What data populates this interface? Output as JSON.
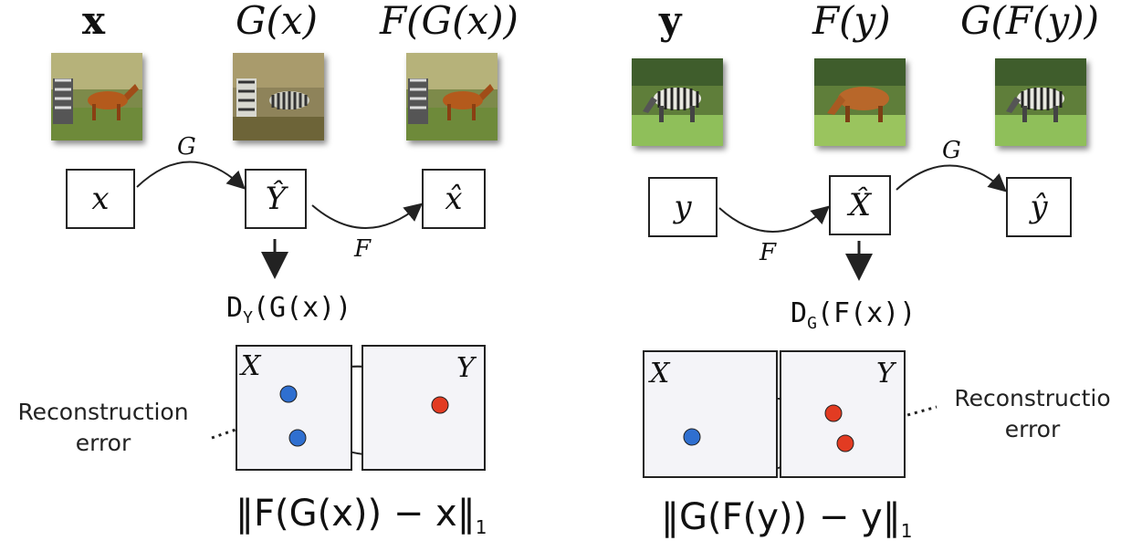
{
  "left": {
    "headers": [
      "x",
      "G(x)",
      "F(G(x))"
    ],
    "nodes": [
      "x",
      "Ŷ",
      "x̂"
    ],
    "edge_labels": [
      "G",
      "F"
    ],
    "discriminator": "D_Y(G(x))",
    "disc_main": "D",
    "disc_sub": "Y",
    "disc_arg": "(G(x))",
    "panel_labels": [
      "X",
      "Y"
    ],
    "reconstruction": [
      "Reconstruction",
      "error"
    ],
    "loss_main": "‖F(G(x)) − x‖",
    "loss_sub": "1"
  },
  "right": {
    "headers": [
      "y",
      "F(y)",
      "G(F(y))"
    ],
    "nodes": [
      "y",
      "X̂",
      "ŷ"
    ],
    "edge_labels": [
      "F",
      "G"
    ],
    "discriminator": "D_G(F(x))",
    "disc_main": "D",
    "disc_sub": "G",
    "disc_arg": "(F(x))",
    "panel_labels": [
      "X",
      "Y"
    ],
    "reconstruction": [
      "Reconstructio",
      "error"
    ],
    "loss_main": "‖G(F(y)) − y‖",
    "loss_sub": "1"
  },
  "colors": {
    "blue_dot": "#2f6fd0",
    "red_dot": "#e23b22",
    "panel_bg": "#f4f4f8"
  },
  "images": {
    "left": [
      "horse-with-zebra-thumbnail",
      "zebrafied-thumbnail",
      "reconstructed-horse-thumbnail"
    ],
    "right": [
      "zebra-thumbnail",
      "horse-thumbnail",
      "reconstructed-zebra-thumbnail"
    ]
  }
}
